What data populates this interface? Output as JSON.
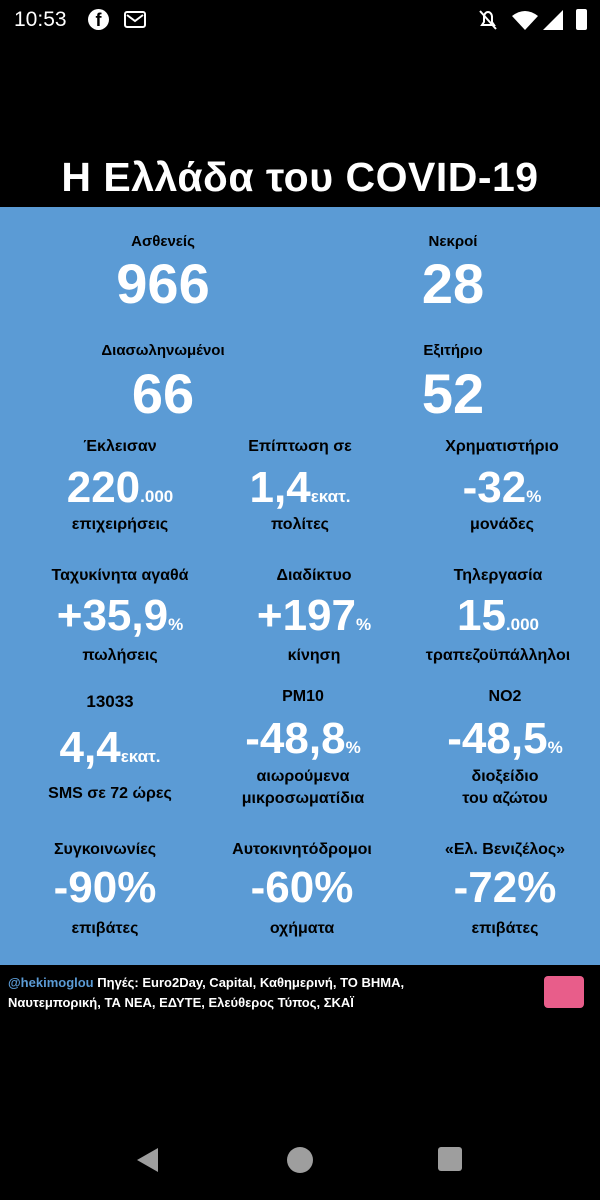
{
  "status_bar": {
    "time": "10:53",
    "icons": [
      "facebook-icon",
      "message-icon",
      "mute-icon",
      "wifi-icon",
      "signal-icon",
      "battery-icon"
    ]
  },
  "title": "Η Ελλάδα του COVID-19",
  "colors": {
    "panel": "#5b9bd5",
    "header": "#000000",
    "value": "#ffffff",
    "label": "#000000"
  },
  "stats": {
    "patients": {
      "label": "Ασθενείς",
      "value": "966"
    },
    "deaths": {
      "label": "Νεκροί",
      "value": "28"
    },
    "intubated": {
      "label": "Διασωληνωμένοι",
      "value": "66"
    },
    "discharged": {
      "label": "Εξιτήριο",
      "value": "52"
    },
    "closed": {
      "label": "Έκλεισαν",
      "value": "220",
      "suffix": ".000",
      "sub": "επιχειρήσεις"
    },
    "impact": {
      "label": "Επίπτωση σε",
      "value": "1,4",
      "suffix": "εκατ.",
      "sub": "πολίτες"
    },
    "stock": {
      "label": "Χρηματιστήριο",
      "value": "-32",
      "suffix": "%",
      "sub": "μονάδες"
    },
    "fast_goods": {
      "label": "Ταχυκίνητα αγαθά",
      "value": "+35,9",
      "suffix": "%",
      "sub": "πωλήσεις"
    },
    "internet": {
      "label": "Διαδίκτυο",
      "value": "+197",
      "suffix": "%",
      "sub": "κίνηση"
    },
    "telework": {
      "label": "Τηλεργασία",
      "value": "15",
      "suffix": ".000",
      "sub": "τραπεζοϋπάλληλοι"
    },
    "sms": {
      "label": "13033",
      "value": "4,4",
      "suffix": "εκατ.",
      "sub": "SMS σε 72 ώρες"
    },
    "pm10": {
      "label": "PM10",
      "value": "-48,8",
      "suffix": "%",
      "sub1": "αιωρούμενα",
      "sub2": "μικροσωματίδια"
    },
    "no2": {
      "label": "NO2",
      "value": "-48,5",
      "suffix": "%",
      "sub1": "διοξείδιο",
      "sub2": "του αζώτου"
    },
    "transport": {
      "label": "Συγκοινωνίες",
      "value": "-90%",
      "sub": "επιβάτες"
    },
    "highways": {
      "label": "Αυτοκινητόδρομοι",
      "value": "-60%",
      "sub": "οχήματα"
    },
    "airport": {
      "label": "«Ελ. Βενιζέλος»",
      "value": "-72%",
      "sub": "επιβάτες"
    }
  },
  "footer": {
    "handle": "@hekimoglou",
    "sources_line1": " Πηγές: Euro2Day, Capital, Καθημερινή, ΤΟ ΒΗΜΑ,",
    "sources_line2": "Ναυτεμπορική, ΤΑ ΝΕΑ, ΕΔΥΤΕ, Ελεύθερος Τύπος, ΣΚΑΪ"
  },
  "nav": {
    "back": "back-icon",
    "home": "home-icon",
    "recents": "recents-icon"
  }
}
